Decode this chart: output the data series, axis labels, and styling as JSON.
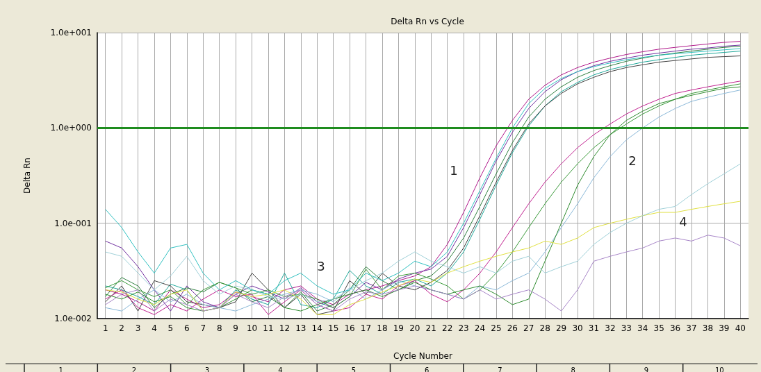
{
  "chart_data": {
    "type": "line",
    "title": "Delta Rn vs Cycle",
    "xlabel": "Cycle Number",
    "ylabel": "Delta Rn",
    "x": [
      1,
      2,
      3,
      4,
      5,
      6,
      7,
      8,
      9,
      10,
      11,
      12,
      13,
      14,
      15,
      16,
      17,
      18,
      19,
      20,
      21,
      22,
      23,
      24,
      25,
      26,
      27,
      28,
      29,
      30,
      31,
      32,
      33,
      34,
      35,
      36,
      37,
      38,
      39,
      40
    ],
    "xlim": [
      0.5,
      40.5
    ],
    "xticks": [
      1,
      2,
      3,
      4,
      5,
      6,
      7,
      8,
      9,
      10,
      11,
      12,
      13,
      14,
      15,
      16,
      17,
      18,
      19,
      20,
      21,
      22,
      23,
      24,
      25,
      26,
      27,
      28,
      29,
      30,
      31,
      32,
      33,
      34,
      35,
      36,
      37,
      38,
      39,
      40
    ],
    "ylim": [
      0.01,
      10
    ],
    "yticks": [
      {
        "value": 0.01,
        "label": "1.0e-002"
      },
      {
        "value": 0.1,
        "label": "1.0e-001"
      },
      {
        "value": 1,
        "label": "1.0e+000"
      },
      {
        "value": 10,
        "label": "1.0e+001"
      }
    ],
    "log": "y",
    "grid": true,
    "marker": "none",
    "line_style": "solid",
    "ref_lines": [
      {
        "axis": "y",
        "value": 1,
        "color": "#1e8c1e"
      }
    ],
    "series": [
      {
        "color": "#b0178a",
        "values": [
          0.02,
          0.018,
          0.015,
          0.012,
          0.02,
          0.016,
          0.013,
          0.014,
          0.019,
          0.017,
          0.015,
          0.02,
          0.022,
          0.016,
          0.014,
          0.018,
          0.02,
          0.022,
          0.025,
          0.028,
          0.035,
          0.06,
          0.13,
          0.3,
          0.65,
          1.2,
          2.0,
          2.8,
          3.6,
          4.3,
          4.9,
          5.4,
          5.9,
          6.3,
          6.7,
          7.0,
          7.3,
          7.6,
          7.9,
          8.1
        ]
      },
      {
        "color": "#7030a0",
        "values": [
          0.065,
          0.055,
          0.035,
          0.02,
          0.012,
          0.022,
          0.015,
          0.013,
          0.018,
          0.022,
          0.019,
          0.016,
          0.021,
          0.015,
          0.013,
          0.017,
          0.024,
          0.02,
          0.026,
          0.03,
          0.033,
          0.045,
          0.09,
          0.2,
          0.45,
          0.9,
          1.6,
          2.4,
          3.2,
          3.9,
          4.5,
          5.0,
          5.4,
          5.8,
          6.1,
          6.4,
          6.7,
          6.9,
          7.2,
          7.4
        ]
      },
      {
        "color": "#1fa89a",
        "values": [
          0.022,
          0.02,
          0.017,
          0.014,
          0.023,
          0.02,
          0.012,
          0.013,
          0.02,
          0.016,
          0.014,
          0.03,
          0.014,
          0.013,
          0.016,
          0.032,
          0.022,
          0.018,
          0.024,
          0.026,
          0.022,
          0.03,
          0.05,
          0.11,
          0.25,
          0.55,
          1.05,
          1.7,
          2.4,
          3.0,
          3.6,
          4.1,
          4.5,
          4.9,
          5.2,
          5.5,
          5.8,
          6.0,
          6.2,
          6.4
        ]
      },
      {
        "color": "#2f7f3f",
        "values": [
          0.017,
          0.027,
          0.022,
          0.013,
          0.018,
          0.021,
          0.019,
          0.024,
          0.021,
          0.015,
          0.017,
          0.013,
          0.019,
          0.012,
          0.014,
          0.02,
          0.035,
          0.025,
          0.02,
          0.025,
          0.028,
          0.04,
          0.07,
          0.15,
          0.33,
          0.7,
          1.3,
          2.0,
          2.7,
          3.4,
          4.0,
          4.5,
          5.0,
          5.4,
          5.8,
          6.1,
          6.4,
          6.7,
          7.0,
          7.2
        ]
      },
      {
        "color": "#404040",
        "values": [
          0.015,
          0.022,
          0.012,
          0.025,
          0.022,
          0.015,
          0.014,
          0.013,
          0.015,
          0.03,
          0.02,
          0.013,
          0.018,
          0.011,
          0.012,
          0.025,
          0.018,
          0.03,
          0.022,
          0.02,
          0.024,
          0.032,
          0.055,
          0.12,
          0.27,
          0.58,
          1.1,
          1.7,
          2.3,
          2.9,
          3.4,
          3.9,
          4.3,
          4.6,
          4.9,
          5.1,
          5.3,
          5.5,
          5.6,
          5.7
        ]
      },
      {
        "color": "#c0208f",
        "values": [
          0.016,
          0.02,
          0.013,
          0.011,
          0.014,
          0.012,
          0.016,
          0.02,
          0.017,
          0.018,
          0.011,
          0.015,
          0.02,
          0.014,
          0.012,
          0.013,
          0.018,
          0.016,
          0.022,
          0.025,
          0.018,
          0.015,
          0.02,
          0.03,
          0.05,
          0.09,
          0.16,
          0.27,
          0.42,
          0.62,
          0.85,
          1.1,
          1.4,
          1.7,
          2.0,
          2.3,
          2.5,
          2.7,
          2.9,
          3.1
        ]
      },
      {
        "color": "#3a9a3a",
        "values": [
          0.021,
          0.025,
          0.02,
          0.017,
          0.02,
          0.014,
          0.02,
          0.024,
          0.021,
          0.018,
          0.02,
          0.017,
          0.018,
          0.016,
          0.013,
          0.017,
          0.033,
          0.02,
          0.028,
          0.03,
          0.026,
          0.022,
          0.016,
          0.02,
          0.03,
          0.05,
          0.09,
          0.16,
          0.27,
          0.42,
          0.62,
          0.85,
          1.1,
          1.4,
          1.7,
          2.0,
          2.3,
          2.5,
          2.7,
          2.9
        ]
      },
      {
        "color": "#8ab8d8",
        "values": [
          0.013,
          0.012,
          0.016,
          0.02,
          0.015,
          0.018,
          0.014,
          0.013,
          0.012,
          0.014,
          0.016,
          0.018,
          0.02,
          0.018,
          0.015,
          0.021,
          0.016,
          0.02,
          0.025,
          0.022,
          0.02,
          0.018,
          0.016,
          0.022,
          0.02,
          0.025,
          0.03,
          0.05,
          0.09,
          0.16,
          0.3,
          0.5,
          0.75,
          1.0,
          1.3,
          1.6,
          1.9,
          2.1,
          2.3,
          2.5
        ]
      },
      {
        "color": "#2e8b2e",
        "values": [
          0.018,
          0.016,
          0.019,
          0.015,
          0.017,
          0.013,
          0.012,
          0.013,
          0.016,
          0.02,
          0.018,
          0.013,
          0.012,
          0.014,
          0.016,
          0.018,
          0.02,
          0.017,
          0.02,
          0.024,
          0.02,
          0.018,
          0.02,
          0.022,
          0.018,
          0.014,
          0.016,
          0.04,
          0.1,
          0.25,
          0.5,
          0.85,
          1.2,
          1.5,
          1.8,
          2.0,
          2.2,
          2.4,
          2.6,
          2.7
        ]
      },
      {
        "color": "#e0e040",
        "values": [
          0.02,
          0.019,
          0.016,
          0.014,
          0.018,
          0.02,
          0.012,
          0.013,
          0.019,
          0.017,
          0.018,
          0.02,
          0.016,
          0.011,
          0.011,
          0.014,
          0.016,
          0.019,
          0.022,
          0.026,
          0.024,
          0.03,
          0.035,
          0.04,
          0.045,
          0.05,
          0.055,
          0.065,
          0.06,
          0.07,
          0.09,
          0.1,
          0.11,
          0.12,
          0.13,
          0.13,
          0.14,
          0.15,
          0.16,
          0.17
        ]
      },
      {
        "color": "#a886c8",
        "values": [
          0.014,
          0.018,
          0.02,
          0.012,
          0.016,
          0.014,
          0.012,
          0.013,
          0.018,
          0.015,
          0.013,
          0.017,
          0.02,
          0.014,
          0.012,
          0.016,
          0.019,
          0.018,
          0.02,
          0.022,
          0.02,
          0.018,
          0.016,
          0.02,
          0.016,
          0.018,
          0.02,
          0.016,
          0.012,
          0.02,
          0.04,
          0.045,
          0.05,
          0.055,
          0.065,
          0.07,
          0.065,
          0.075,
          0.07,
          0.058
        ]
      },
      {
        "color": "#9fd0d8",
        "values": [
          0.05,
          0.045,
          0.03,
          0.02,
          0.028,
          0.045,
          0.025,
          0.018,
          0.022,
          0.02,
          0.017,
          0.016,
          0.018,
          0.015,
          0.016,
          0.02,
          0.025,
          0.03,
          0.04,
          0.05,
          0.04,
          0.035,
          0.03,
          0.035,
          0.03,
          0.04,
          0.045,
          0.03,
          0.035,
          0.04,
          0.06,
          0.08,
          0.1,
          0.12,
          0.14,
          0.15,
          0.2,
          0.26,
          0.33,
          0.42
        ]
      },
      {
        "color": "#30c0c0",
        "values": [
          0.14,
          0.09,
          0.05,
          0.03,
          0.055,
          0.06,
          0.03,
          0.02,
          0.025,
          0.02,
          0.018,
          0.025,
          0.03,
          0.022,
          0.018,
          0.02,
          0.03,
          0.025,
          0.03,
          0.04,
          0.035,
          0.05,
          0.1,
          0.22,
          0.48,
          1.0,
          1.8,
          2.6,
          3.3,
          3.9,
          4.4,
          4.8,
          5.2,
          5.5,
          5.8,
          6.0,
          6.2,
          6.4,
          6.6,
          6.8
        ]
      }
    ],
    "annotations": [
      "1",
      "2",
      "3",
      "4",
      "1",
      "2",
      "3",
      "4",
      "5",
      "6",
      "7",
      "8",
      "9",
      "10"
    ]
  }
}
